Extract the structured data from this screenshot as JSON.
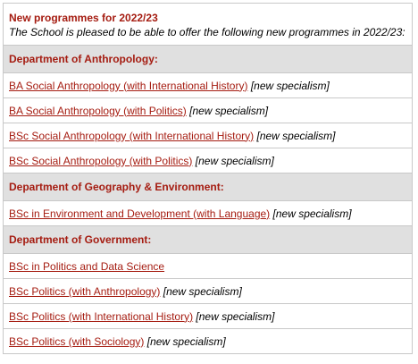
{
  "intro": {
    "title": "New programmes for 2022/23",
    "subtitle": "The School is pleased to be able to offer the following new programmes in 2022/23:"
  },
  "departments": [
    {
      "name": "Department of Anthropology:",
      "programmes": [
        {
          "link": "BA Social Anthropology (with International History)",
          "note": "[new specialism]"
        },
        {
          "link": "BA Social Anthropology (with Politics)",
          "note": "[new specialism]"
        },
        {
          "link": "BSc Social Anthropology (with International History)",
          "note": "[new specialism]"
        },
        {
          "link": "BSc Social Anthropology (with Politics)",
          "note": "[new specialism]"
        }
      ]
    },
    {
      "name": "Department of Geography & Environment:",
      "programmes": [
        {
          "link": "BSc in Environment and Development (with Language)",
          "note": "[new specialism]"
        }
      ]
    },
    {
      "name": "Department of Government:",
      "programmes": [
        {
          "link": "BSc in Politics and Data Science",
          "note": ""
        },
        {
          "link": "BSc Politics (with Anthropology)",
          "note": "[new specialism]"
        },
        {
          "link": "BSc Politics (with International History)",
          "note": "[new specialism]"
        },
        {
          "link": "BSc Politics (with Sociology)",
          "note": "[new specialism]"
        }
      ]
    }
  ],
  "colors": {
    "accent": "#a51c11",
    "header_bg": "#e0e0e0",
    "border": "#c8c8c8"
  }
}
